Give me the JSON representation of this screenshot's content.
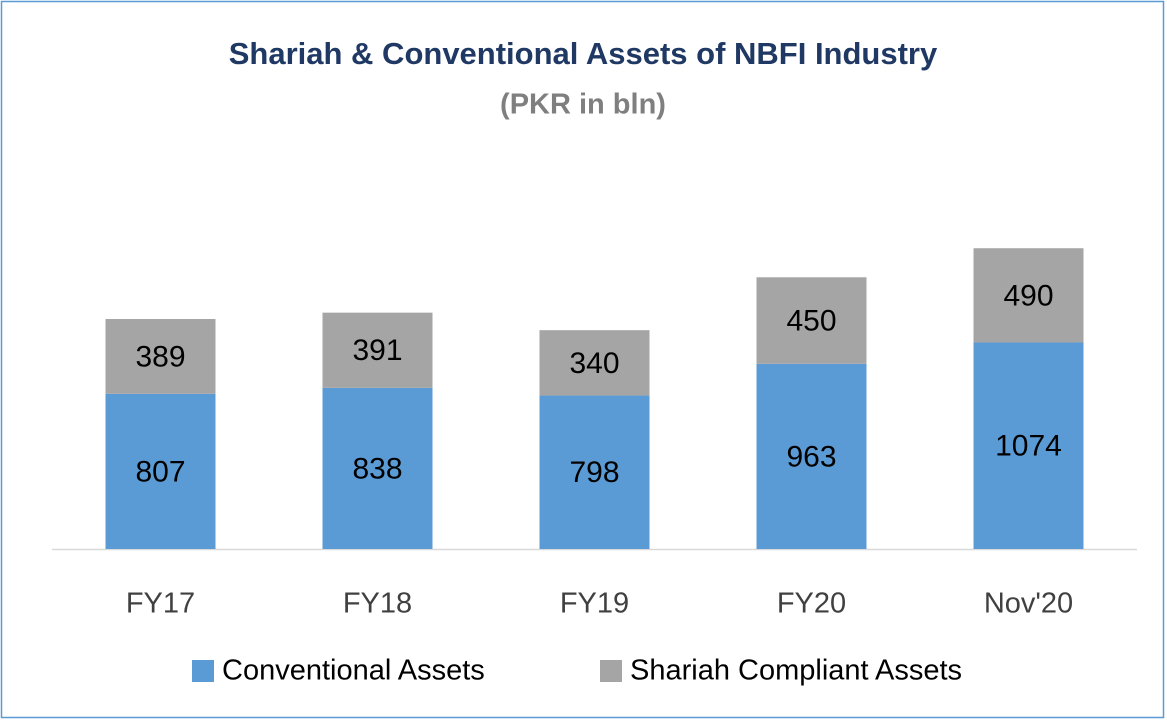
{
  "chart_data": {
    "type": "stacked-bar",
    "title": "Shariah & Conventional Assets of NBFI Industry",
    "subtitle": "(PKR in bln)",
    "categories": [
      "FY17",
      "FY18",
      "FY19",
      "FY20",
      "Nov'20"
    ],
    "series": [
      {
        "name": "Conventional Assets",
        "color": "#5b9bd5",
        "values": [
          807,
          838,
          798,
          963,
          1074
        ]
      },
      {
        "name": "Shariah Compliant Assets",
        "color": "#a5a5a5",
        "values": [
          389,
          391,
          340,
          450,
          490
        ]
      }
    ],
    "legend": "bottom"
  }
}
